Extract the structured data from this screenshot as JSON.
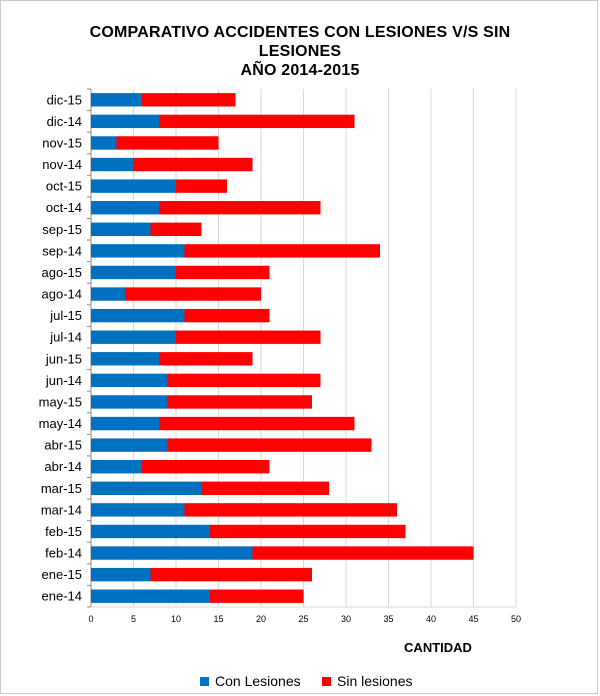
{
  "chart_data": {
    "type": "bar",
    "orientation": "horizontal",
    "stacked": true,
    "title": [
      "COMPARATIVO ACCIDENTES CON LESIONES V/S SIN",
      "LESIONES",
      "AÑO 2014-2015"
    ],
    "xlabel": "CANTIDAD",
    "ylabel": "",
    "xlim": [
      0,
      50
    ],
    "xticks": [
      "0",
      "5",
      "10",
      "15",
      "20",
      "25",
      "30",
      "35",
      "40",
      "45",
      "50"
    ],
    "grid": true,
    "legend_position": "bottom",
    "categories": [
      "dic-15",
      "dic-14",
      "nov-15",
      "nov-14",
      "oct-15",
      "oct-14",
      "sep-15",
      "sep-14",
      "ago-15",
      "ago-14",
      "jul-15",
      "jul-14",
      "jun-15",
      "jun-14",
      "may-15",
      "may-14",
      "abr-15",
      "abr-14",
      "mar-15",
      "mar-14",
      "feb-15",
      "feb-14",
      "ene-15",
      "ene-14"
    ],
    "series": [
      {
        "name": "Con Lesiones",
        "color": "#0070c0",
        "values": [
          6,
          8,
          3,
          5,
          10,
          8,
          7,
          11,
          10,
          4,
          11,
          10,
          8,
          9,
          9,
          8,
          9,
          6,
          13,
          11,
          14,
          19,
          7,
          14
        ]
      },
      {
        "name": "Sin lesiones",
        "color": "#ff0000",
        "values": [
          11,
          23,
          12,
          14,
          6,
          19,
          6,
          23,
          11,
          16,
          10,
          17,
          11,
          18,
          17,
          23,
          24,
          15,
          15,
          25,
          23,
          26,
          19,
          11
        ]
      }
    ]
  }
}
